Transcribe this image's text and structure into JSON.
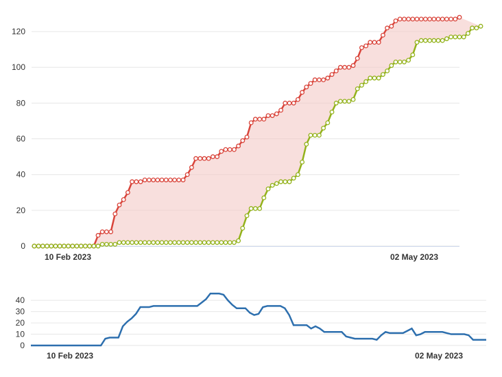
{
  "colors": {
    "scope": "#d9443a",
    "completed": "#93b21b",
    "gap_fill": "#f3c9c6",
    "lower_line": "#2d6fae",
    "grid": "#e6e6e6"
  },
  "chart_data": [
    {
      "type": "line",
      "x_ticks": [
        "10 Feb 2023",
        "02 May 2023"
      ],
      "y_ticks": [
        "0",
        "20",
        "40",
        "60",
        "80",
        "100",
        "120"
      ],
      "ylim": [
        0,
        130
      ],
      "grid": true,
      "markers": true,
      "fill_between_series": true,
      "series": [
        {
          "values": [
            0,
            0,
            0,
            0,
            0,
            0,
            0,
            0,
            0,
            0,
            0,
            0,
            0,
            0,
            0,
            6,
            8,
            8,
            8,
            18,
            23,
            26,
            30,
            36,
            36,
            36,
            37,
            37,
            37,
            37,
            37,
            37,
            37,
            37,
            37,
            37,
            40,
            44,
            49,
            49,
            49,
            49,
            50,
            50,
            53,
            54,
            54,
            54,
            56,
            59,
            61,
            69,
            71,
            71,
            71,
            73,
            73,
            74,
            76,
            80,
            80,
            80,
            82,
            86,
            89,
            91,
            93,
            93,
            93,
            94,
            96,
            98,
            100,
            100,
            100,
            101,
            105,
            111,
            112,
            114,
            114,
            114,
            118,
            122,
            123,
            126,
            127,
            127,
            127,
            127,
            127,
            127,
            127,
            127,
            127,
            127,
            127,
            127,
            127,
            127,
            128
          ]
        },
        {
          "values": [
            0,
            0,
            0,
            0,
            0,
            0,
            0,
            0,
            0,
            0,
            0,
            0,
            0,
            0,
            0,
            0,
            1,
            1,
            1,
            1,
            2,
            2,
            2,
            2,
            2,
            2,
            2,
            2,
            2,
            2,
            2,
            2,
            2,
            2,
            2,
            2,
            2,
            2,
            2,
            2,
            2,
            2,
            2,
            2,
            2,
            2,
            2,
            2,
            3,
            10,
            17,
            21,
            21,
            21,
            27,
            32,
            34,
            35,
            36,
            36,
            36,
            38,
            40,
            47,
            57,
            62,
            62,
            62,
            66,
            69,
            75,
            80,
            81,
            81,
            81,
            82,
            88,
            90,
            92,
            94,
            94,
            94,
            96,
            98,
            101,
            103,
            103,
            103,
            104,
            107,
            114,
            115,
            115,
            115,
            115,
            115,
            115,
            116,
            117,
            117,
            117,
            117,
            119,
            122,
            122,
            123
          ]
        }
      ]
    },
    {
      "type": "line",
      "x_ticks": [
        "10 Feb 2023",
        "02 May 2023"
      ],
      "y_ticks": [
        "0",
        "10",
        "20",
        "30",
        "40"
      ],
      "ylim": [
        0,
        48
      ],
      "grid": true,
      "markers": false,
      "series": [
        {
          "values": [
            0,
            0,
            0,
            0,
            0,
            0,
            0,
            0,
            0,
            0,
            0,
            0,
            0,
            0,
            0,
            0,
            0,
            6,
            7,
            7,
            7,
            17,
            21,
            24,
            28,
            34,
            34,
            34,
            35,
            35,
            35,
            35,
            35,
            35,
            35,
            35,
            35,
            35,
            35,
            38,
            41,
            46,
            46,
            46,
            45,
            40,
            36,
            33,
            33,
            33,
            29,
            27,
            28,
            34,
            35,
            35,
            35,
            35,
            33,
            27,
            18,
            18,
            18,
            18,
            15,
            17,
            15,
            12,
            12,
            12,
            12,
            12,
            8,
            7,
            6,
            6,
            6,
            6,
            6,
            5,
            9,
            12,
            11,
            11,
            11,
            11,
            13,
            15,
            9,
            10,
            12,
            12,
            12,
            12,
            12,
            11,
            10,
            10,
            10,
            10,
            9,
            5,
            5,
            5,
            5
          ]
        }
      ]
    }
  ]
}
